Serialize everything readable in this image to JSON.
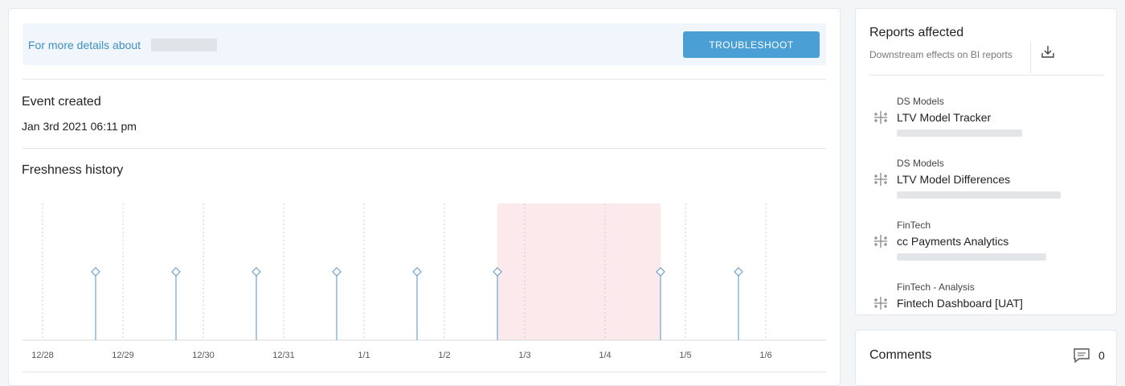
{
  "banner": {
    "text": "For more details about",
    "button": "TROUBLESHOOT"
  },
  "event": {
    "label": "Event created",
    "date": "Jan 3rd 2021 06:11 pm"
  },
  "chart_data": {
    "type": "lollipop",
    "title": "Freshness history",
    "x": [
      0.66,
      1.66,
      2.66,
      3.66,
      4.66,
      5.66,
      7.69,
      8.66
    ],
    "xlim": [
      -0.25,
      9.75
    ],
    "xticks": [
      {
        "value": 0,
        "label": "12/28"
      },
      {
        "value": 1,
        "label": "12/29"
      },
      {
        "value": 2,
        "label": "12/30"
      },
      {
        "value": 3,
        "label": "12/31"
      },
      {
        "value": 4,
        "label": "1/1"
      },
      {
        "value": 5,
        "label": "1/2"
      },
      {
        "value": 6,
        "label": "1/3"
      },
      {
        "value": 7,
        "label": "1/4"
      },
      {
        "value": 8,
        "label": "1/5"
      },
      {
        "value": 9,
        "label": "1/6"
      }
    ],
    "highlight": [
      5.66,
      7.69
    ],
    "highlight_color": "#fbe9ec",
    "color": "#8db4d3",
    "grid": true
  },
  "reports": {
    "title": "Reports affected",
    "subtitle": "Downstream effects on BI reports",
    "items": [
      {
        "category": "DS Models",
        "name": "LTV Model Tracker"
      },
      {
        "category": "DS Models",
        "name": "LTV Model Differences"
      },
      {
        "category": "FinTech",
        "name": "cc Payments Analytics"
      },
      {
        "category": "FinTech - Analysis",
        "name": "Fintech Dashboard [UAT]"
      }
    ]
  },
  "comments": {
    "title": "Comments",
    "count": 0
  }
}
